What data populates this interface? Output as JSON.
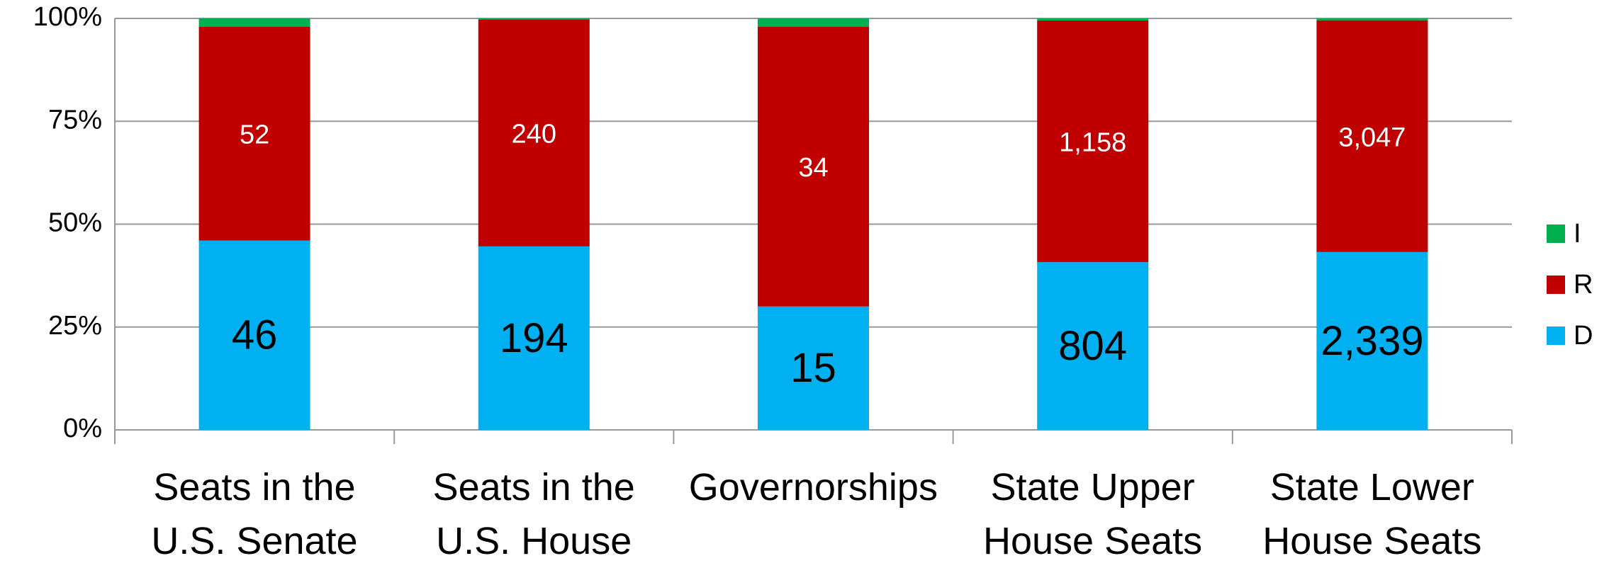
{
  "chart_data": {
    "type": "bar",
    "stacked": "percent",
    "categories": [
      "Seats in the\nU.S. Senate",
      "Seats in the\nU.S. House",
      "Governorships",
      "State Upper\nHouse Seats",
      "State Lower\nHouse Seats"
    ],
    "series": [
      {
        "name": "D",
        "color": "#00b0f0",
        "values": [
          46,
          194,
          15,
          804,
          2339
        ],
        "value_labels": [
          "46",
          "194",
          "15",
          "804",
          "2,339"
        ]
      },
      {
        "name": "R",
        "color": "#c00000",
        "values": [
          52,
          240,
          34,
          1158,
          3047
        ],
        "value_labels": [
          "52",
          "240",
          "34",
          "1,158",
          "3,047"
        ]
      },
      {
        "name": "I",
        "color": "#00b050",
        "values": [
          2,
          1,
          1,
          10,
          25
        ]
      }
    ],
    "ylim": [
      0,
      100
    ],
    "yticks": [
      {
        "value": 0,
        "label": "0%"
      },
      {
        "value": 25,
        "label": "25%"
      },
      {
        "value": 50,
        "label": "50%"
      },
      {
        "value": 75,
        "label": "75%"
      },
      {
        "value": 100,
        "label": "100%"
      }
    ],
    "grid": true,
    "legend": "right"
  }
}
